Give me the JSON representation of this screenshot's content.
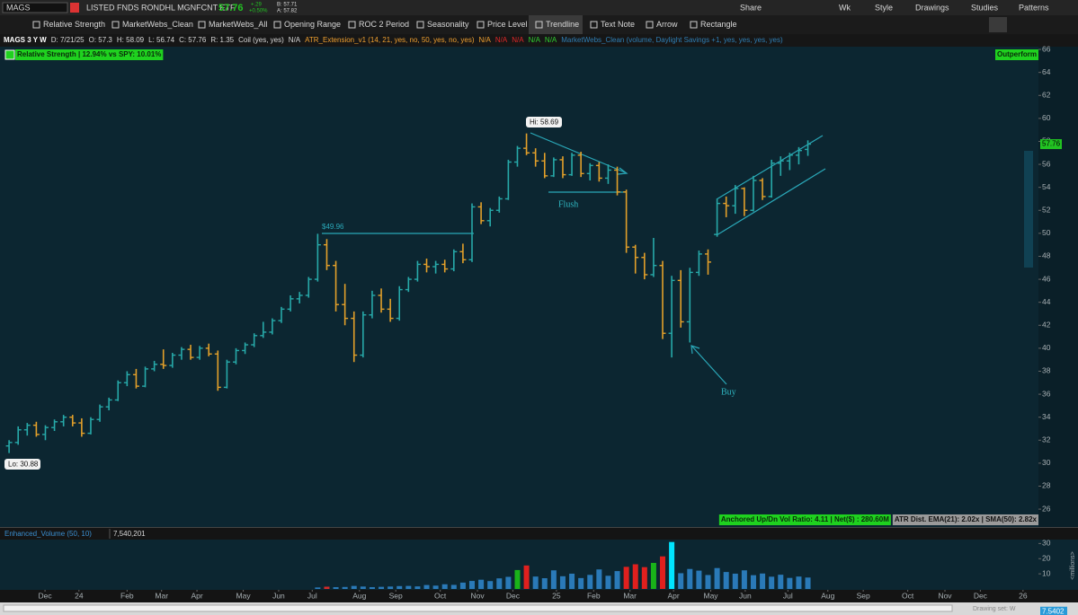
{
  "toolbar": {
    "symbol": "MAGS",
    "description": "LISTED FNDS RONDHL MGNFCNT ETF",
    "last": "57.76",
    "change": "+.29",
    "change_pct": "+0.50%",
    "bid": "B: 57.71",
    "ask": "A: 57.82",
    "buttons": [
      "Share",
      "Wk",
      "Style",
      "Drawings",
      "Studies",
      "Patterns"
    ]
  },
  "drawing_tools": [
    "Relative Strength",
    "MarketWebs_Clean",
    "MarketWebs_All",
    "Opening Range",
    "ROC 2 Period",
    "Seasonality",
    "Price Level",
    "Trendline",
    "Text Note",
    "Arrow",
    "Rectangle"
  ],
  "status_line": [
    {
      "text": "MAGS 3 Y W",
      "color": "#ffffff"
    },
    {
      "text": "D: 7/21/25",
      "color": "#d8d8d8"
    },
    {
      "text": "O: 57.3",
      "color": "#d8d8d8"
    },
    {
      "text": "H: 58.09",
      "color": "#d8d8d8"
    },
    {
      "text": "L: 56.74",
      "color": "#d8d8d8"
    },
    {
      "text": "C: 57.76",
      "color": "#d8d8d8"
    },
    {
      "text": "R: 1.35",
      "color": "#d8d8d8"
    },
    {
      "text": "Coil (yes, yes)",
      "color": "#d8d8d8"
    },
    {
      "text": "N/A",
      "color": "#d8d8d8"
    },
    {
      "text": "ATR_Extension_v1 (14, 21, yes, no, 50, yes, no, yes)",
      "color": "#f0a030"
    },
    {
      "text": "N/A",
      "color": "#f0a030"
    },
    {
      "text": "N/A",
      "color": "#e02828"
    },
    {
      "text": "N/A",
      "color": "#e02828"
    },
    {
      "text": "N/A",
      "color": "#2fcf2f"
    },
    {
      "text": "N/A",
      "color": "#2fcf2f"
    },
    {
      "text": "MarketWebs_Clean (volume, Daylight Savings +1, yes, yes, yes, yes)",
      "color": "#2f7fb5"
    }
  ],
  "studies": {
    "relative_strength": "Relative Strength | 12.94% vs SPY: 10.01%",
    "signal": "Outperform",
    "vol_ratio": "Anchored Up/Dn Vol Ratio: 4.11 | Net($) : 280.60M",
    "atr_dist": "ATR Dist. EMA(21): 2.02x | SMA(50): 2.82x"
  },
  "annotations": {
    "hi": "Hi: 58.69",
    "lo": "Lo: 30.88",
    "level": "$49.96",
    "flush": "Flush",
    "buy": "Buy"
  },
  "chart_data": [
    {
      "type": "ohlc",
      "last_label": "57.76",
      "up_color": "#27a9a9",
      "down_color": "#e3a02a",
      "last_color": "#22c322",
      "open": [
        31.5,
        31.8,
        32.9,
        33.3,
        32.5,
        33.1,
        33.6,
        34.0,
        33.5,
        32.6,
        33.8,
        34.9,
        35.5,
        37.0,
        37.7,
        36.7,
        38.2,
        38.6,
        38.5,
        39.4,
        39.9,
        39.2,
        40.0,
        39.5,
        36.6,
        38.8,
        39.8,
        40.3,
        41.1,
        41.4,
        42.4,
        43.4,
        44.3,
        44.6,
        46.0,
        49.0,
        47.2,
        43.8,
        42.6,
        39.4,
        42.9,
        44.6,
        43.4,
        42.6,
        45.1,
        46.0,
        47.3,
        47.1,
        47.3,
        46.9,
        48.4,
        47.7,
        52.3,
        51.1,
        52.0,
        53.0,
        56.2,
        57.4,
        57.0,
        56.3,
        55.0,
        56.4,
        55.1,
        56.8,
        55.2,
        55.9,
        54.8,
        55.5,
        53.6,
        48.8,
        47.9,
        46.4,
        47.2,
        41.3,
        45.9,
        42.3,
        46.6,
        48.2,
        49.9,
        52.6,
        52.4,
        53.9,
        52.0,
        54.6,
        53.2,
        56.1,
        56.3,
        56.8,
        57.3
      ],
      "high": [
        32.0,
        33.2,
        33.5,
        33.6,
        33.3,
        33.8,
        34.2,
        34.2,
        33.9,
        34.0,
        35.1,
        35.7,
        37.2,
        38.0,
        38.2,
        38.4,
        38.9,
        39.9,
        39.6,
        40.1,
        40.3,
        40.2,
        40.4,
        39.8,
        39.0,
        40.0,
        40.5,
        41.3,
        42.3,
        42.6,
        43.6,
        44.6,
        44.9,
        46.2,
        49.96,
        49.5,
        47.6,
        45.6,
        43.2,
        43.2,
        45.0,
        45.2,
        44.3,
        45.4,
        46.2,
        47.6,
        47.8,
        47.6,
        47.7,
        48.6,
        49.1,
        52.6,
        52.7,
        52.2,
        53.2,
        56.4,
        57.6,
        58.69,
        57.4,
        57.0,
        56.6,
        56.7,
        57.0,
        57.1,
        56.1,
        56.2,
        56.0,
        55.8,
        53.8,
        49.0,
        48.3,
        49.6,
        47.6,
        46.3,
        46.8,
        47.0,
        48.5,
        48.6,
        53.0,
        53.2,
        54.2,
        54.0,
        55.0,
        54.8,
        56.4,
        56.7,
        57.0,
        57.5,
        58.09
      ],
      "low": [
        30.88,
        31.6,
        32.4,
        32.3,
        32.0,
        32.8,
        33.2,
        33.2,
        32.3,
        32.5,
        33.6,
        34.6,
        35.4,
        36.7,
        36.5,
        36.6,
        38.0,
        38.2,
        38.3,
        39.0,
        39.0,
        39.0,
        39.3,
        36.3,
        36.5,
        38.6,
        39.5,
        40.1,
        40.9,
        41.2,
        42.2,
        43.2,
        43.9,
        44.4,
        45.8,
        46.8,
        43.2,
        42.0,
        38.8,
        39.2,
        42.6,
        43.1,
        42.3,
        42.4,
        44.9,
        45.8,
        46.6,
        46.5,
        46.6,
        46.7,
        47.4,
        47.5,
        50.8,
        50.6,
        51.8,
        52.9,
        55.8,
        56.8,
        55.8,
        54.8,
        54.9,
        54.8,
        55.0,
        54.9,
        54.6,
        54.5,
        54.3,
        53.3,
        48.3,
        46.5,
        46.0,
        46.2,
        40.8,
        39.2,
        41.8,
        40.5,
        46.3,
        46.4,
        49.7,
        51.4,
        51.7,
        51.5,
        51.9,
        52.9,
        53.1,
        55.0,
        55.5,
        56.0,
        56.74
      ],
      "close": [
        31.8,
        32.9,
        33.3,
        32.5,
        33.1,
        33.6,
        34.0,
        33.5,
        32.6,
        33.8,
        34.9,
        35.5,
        37.0,
        37.7,
        36.7,
        38.2,
        38.6,
        38.5,
        39.4,
        39.9,
        39.2,
        40.0,
        39.5,
        36.6,
        38.8,
        39.8,
        40.3,
        41.1,
        41.4,
        42.4,
        43.4,
        44.3,
        44.6,
        46.0,
        49.0,
        47.2,
        43.8,
        42.6,
        39.4,
        42.9,
        44.6,
        43.4,
        42.6,
        45.1,
        46.0,
        47.3,
        47.1,
        47.3,
        46.9,
        48.4,
        47.7,
        52.3,
        51.1,
        52.0,
        53.0,
        56.2,
        57.4,
        57.0,
        56.3,
        55.0,
        56.4,
        55.1,
        56.8,
        55.2,
        55.9,
        54.8,
        55.5,
        53.6,
        48.8,
        47.9,
        46.4,
        47.2,
        41.3,
        45.9,
        42.3,
        46.6,
        48.2,
        47.5,
        52.6,
        52.4,
        53.9,
        52.0,
        54.6,
        53.2,
        56.1,
        56.3,
        56.8,
        57.2,
        57.76
      ],
      "xlim": [
        -1,
        113.4
      ],
      "ylim": [
        24.6,
        66.2
      ],
      "yticks": [
        26,
        28,
        30,
        32,
        34,
        36,
        38,
        40,
        42,
        44,
        46,
        48,
        50,
        52,
        54,
        56,
        58,
        60,
        62,
        64,
        66
      ],
      "xticks": [
        {
          "value": 3.96,
          "label": "Dec"
        },
        {
          "value": 7.7,
          "label": "24"
        },
        {
          "value": 13,
          "label": "Feb"
        },
        {
          "value": 16.8,
          "label": "Mar"
        },
        {
          "value": 20.7,
          "label": "Apr"
        },
        {
          "value": 25.8,
          "label": "May"
        },
        {
          "value": 29.7,
          "label": "Jun"
        },
        {
          "value": 33.4,
          "label": "Jul"
        },
        {
          "value": 38.6,
          "label": "Aug"
        },
        {
          "value": 42.6,
          "label": "Sep"
        },
        {
          "value": 47.5,
          "label": "Oct"
        },
        {
          "value": 51.6,
          "label": "Nov"
        },
        {
          "value": 55.5,
          "label": "Dec"
        },
        {
          "value": 60.3,
          "label": "25"
        },
        {
          "value": 64.4,
          "label": "Feb"
        },
        {
          "value": 68.4,
          "label": "Mar"
        },
        {
          "value": 73.2,
          "label": "Apr"
        },
        {
          "value": 77.3,
          "label": "May"
        },
        {
          "value": 81.1,
          "label": "Jun"
        },
        {
          "value": 85.8,
          "label": "Jul"
        },
        {
          "value": 90.2,
          "label": "Aug"
        },
        {
          "value": 94.1,
          "label": "Sep"
        },
        {
          "value": 99,
          "label": "Oct"
        },
        {
          "value": 103.1,
          "label": "Nov"
        },
        {
          "value": 107,
          "label": "Dec"
        },
        {
          "value": 111.7,
          "label": "26"
        }
      ]
    },
    {
      "type": "bar",
      "title": "Enhanced_Volume (50, 10)",
      "subtitle": "7,540,201",
      "y_label": "<millions>",
      "last_label": "7.5402",
      "values": [
        null,
        null,
        null,
        null,
        null,
        null,
        null,
        null,
        null,
        null,
        null,
        null,
        null,
        null,
        null,
        null,
        null,
        null,
        null,
        null,
        null,
        null,
        null,
        null,
        null,
        null,
        null,
        null,
        null,
        null,
        null,
        null,
        null,
        null,
        1.0,
        1.5,
        1.2,
        1.3,
        2.0,
        1.6,
        1.2,
        1.4,
        1.6,
        1.9,
        2.0,
        1.7,
        2.6,
        2.2,
        3.1,
        2.7,
        4.2,
        5.3,
        6.1,
        5.2,
        7.0,
        8.0,
        12.5,
        15.5,
        8.2,
        7.1,
        12.3,
        8.4,
        10.1,
        7.2,
        9.3,
        12.9,
        8.7,
        11.8,
        14.6,
        16.3,
        14.4,
        17.2,
        21.5,
        31,
        10.4,
        13.2,
        12.1,
        9.2,
        13.8,
        11.2,
        10.1,
        12.3,
        9.1,
        10.2,
        8.1,
        9.4,
        7.3,
        8.2,
        7.54
      ],
      "colors": [
        null,
        null,
        null,
        null,
        null,
        null,
        null,
        null,
        null,
        null,
        null,
        null,
        null,
        null,
        null,
        null,
        null,
        null,
        null,
        null,
        null,
        null,
        null,
        null,
        null,
        null,
        null,
        null,
        null,
        null,
        null,
        null,
        null,
        null,
        "#2a7ab8",
        "#d42a2a",
        "#2a7ab8",
        "#2a7ab8",
        "#2a7ab8",
        "#2a7ab8",
        "#2a7ab8",
        "#2a7ab8",
        "#2a7ab8",
        "#2a7ab8",
        "#2a7ab8",
        "#2a7ab8",
        "#2a7ab8",
        "#2a7ab8",
        "#2a7ab8",
        "#2a7ab8",
        "#2a7ab8",
        "#2a7ab8",
        "#2a7ab8",
        "#2a7ab8",
        "#2a7ab8",
        "#2a7ab8",
        "#19b319",
        "#e0201e",
        "#2a7ab8",
        "#2a7ab8",
        "#2a7ab8",
        "#2a7ab8",
        "#2a7ab8",
        "#2a7ab8",
        "#2a7ab8",
        "#2a7ab8",
        "#2a7ab8",
        "#2a7ab8",
        "#e0201e",
        "#e0201e",
        "#e0201e",
        "#19b319",
        "#e0201e",
        "#00e5ff",
        "#2a7ab8",
        "#2a7ab8",
        "#2a7ab8",
        "#2a7ab8",
        "#2a7ab8",
        "#2a7ab8",
        "#2a7ab8",
        "#2a7ab8",
        "#2a7ab8",
        "#2a7ab8",
        "#2a7ab8",
        "#2a7ab8",
        "#2a7ab8",
        "#2a7ab8",
        "#2a7ab8"
      ],
      "last_color": "#2a9ad8",
      "ylim": [
        0,
        32
      ],
      "yticks": [
        10,
        20,
        30
      ]
    }
  ],
  "footer": {
    "drawing_set": "Drawing set: W"
  }
}
